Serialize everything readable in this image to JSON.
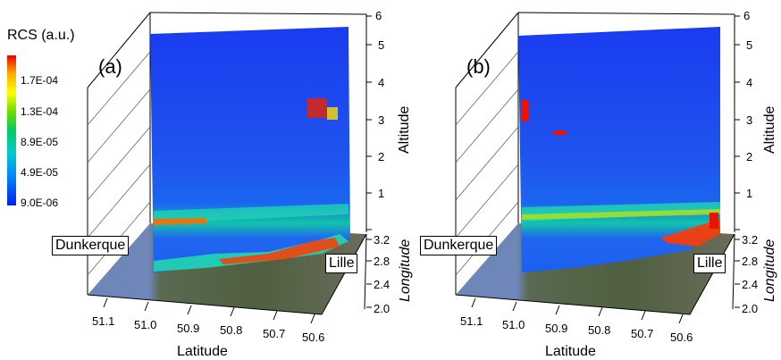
{
  "colorbar": {
    "title": "RCS (a.u.)",
    "ticks": [
      "1.7E-04",
      "1.3E-04",
      "8.9E-05",
      "4.9E-05",
      "9.0E-06"
    ],
    "colors": [
      "#ee0000",
      "#ffaa00",
      "#ffff00",
      "#66dd00",
      "#00cc66",
      "#00cccc",
      "#0088ff",
      "#0022ee"
    ]
  },
  "chart_data": [
    {
      "type": "heatmap",
      "panel": "(a)",
      "xlabel": "Latitude",
      "ylabel": "Longitude",
      "zlabel": "Altitude",
      "x_ticks": [
        "51.1",
        "51.0",
        "50.9",
        "50.8",
        "50.7",
        "50.6"
      ],
      "y_ticks": [
        "2.0",
        "2.4",
        "2.8",
        "3.2"
      ],
      "z_ticks": [
        "1",
        "2",
        "3",
        "4",
        "5",
        "6"
      ],
      "zlim": [
        0,
        6
      ],
      "places": [
        "Dunkerque",
        "Lille"
      ],
      "color_range": [
        "9.0E-06",
        "1.7E-04"
      ]
    },
    {
      "type": "heatmap",
      "panel": "(b)",
      "xlabel": "Latitude",
      "ylabel": "Longitude",
      "zlabel": "Altitude",
      "x_ticks": [
        "51.1",
        "51.0",
        "50.9",
        "50.8",
        "50.7",
        "50.6"
      ],
      "y_ticks": [
        "2.0",
        "2.4",
        "2.8",
        "3.2"
      ],
      "z_ticks": [
        "1",
        "2",
        "3",
        "4",
        "5",
        "6"
      ],
      "zlim": [
        0,
        6
      ],
      "places": [
        "Dunkerque",
        "Lille"
      ],
      "color_range": [
        "9.0E-06",
        "1.7E-04"
      ]
    }
  ]
}
